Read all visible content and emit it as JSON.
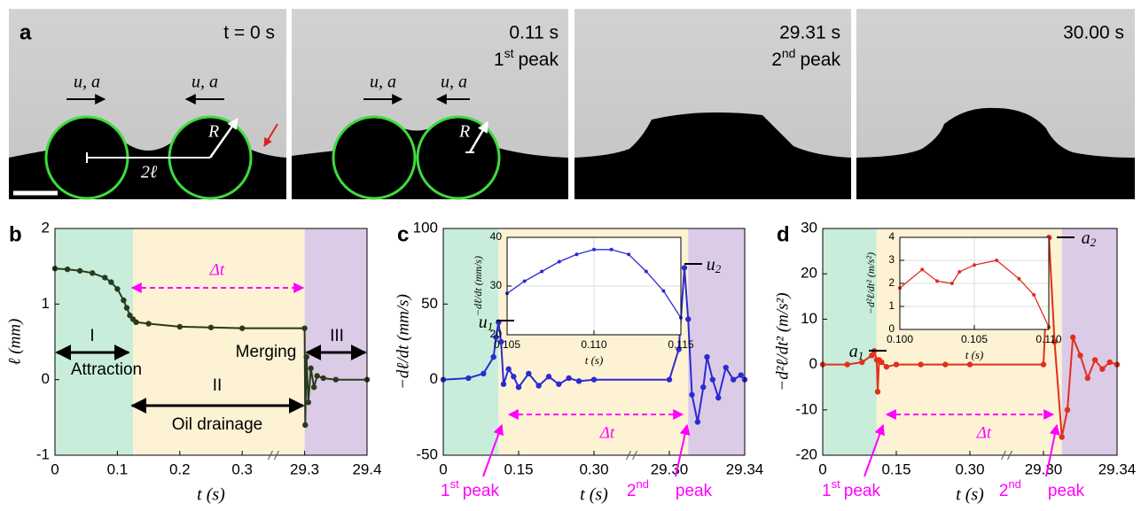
{
  "panel_a": {
    "label": "a",
    "frames": [
      {
        "time": "t = 0 s"
      },
      {
        "time": "0.11 s",
        "ordinal": "1",
        "suffix": "st",
        "word": "peak"
      },
      {
        "time": "29.31 s",
        "ordinal": "2",
        "suffix": "nd",
        "word": "peak"
      },
      {
        "time": "30.00 s"
      }
    ],
    "symbols": {
      "velocity": "u, a",
      "radius": "R",
      "distance": "2ℓ"
    }
  },
  "chart_data": [
    {
      "type": "line",
      "label": "b",
      "y_label": "ℓ (mm)",
      "x_label": "t (s)",
      "axis_break": true,
      "grid": false,
      "xlim": [
        0,
        29.4
      ],
      "xticks": [
        0,
        0.1,
        0.2,
        0.3,
        29.3,
        29.4
      ],
      "ylim": [
        -1,
        2
      ],
      "yticks": [
        -1,
        0,
        1,
        2
      ],
      "spans": [
        {
          "start": 0,
          "end": 0.125,
          "color": "#c8eedb"
        },
        {
          "start": 0.125,
          "end": 29.3,
          "color": "#fdf2d3"
        },
        {
          "start": 29.3,
          "end": 29.4,
          "color": "#dccbe7"
        }
      ],
      "series": [
        {
          "color": "#2a3a1c",
          "x": [
            0,
            0.02,
            0.04,
            0.06,
            0.08,
            0.09,
            0.1,
            0.11,
            0.115,
            0.12,
            0.125,
            0.13,
            0.15,
            0.2,
            0.25,
            0.3,
            29.3,
            29.301,
            29.303,
            29.306,
            29.31,
            29.315,
            29.32,
            29.33,
            29.35,
            29.4
          ],
          "values": [
            1.47,
            1.46,
            1.44,
            1.41,
            1.35,
            1.29,
            1.2,
            1.05,
            0.95,
            0.85,
            0.8,
            0.76,
            0.74,
            0.7,
            0.69,
            0.68,
            0.68,
            -0.6,
            0.3,
            -0.3,
            0.15,
            -0.1,
            0.05,
            0.02,
            0,
            0
          ]
        }
      ],
      "annotations": [
        {
          "text": "Δt"
        },
        {
          "text": "I"
        },
        {
          "text": "Attraction"
        },
        {
          "text": "II"
        },
        {
          "text": "Oil drainage"
        },
        {
          "text": "Merging"
        },
        {
          "text": "III"
        }
      ]
    },
    {
      "type": "line",
      "label": "c",
      "y_label": "−dℓ/dt (mm/s)",
      "x_label": "t (s)",
      "axis_break": true,
      "grid": false,
      "xlim": [
        0,
        29.34
      ],
      "xticks": [
        0,
        0.15,
        {
          "value": 0.3,
          "label": "0.30"
        },
        {
          "value": 29.3,
          "label": "29.30"
        },
        29.34
      ],
      "ylim": [
        -50,
        100
      ],
      "yticks": [
        -50,
        0,
        50,
        100
      ],
      "spans": [
        {
          "start": 0,
          "end": 0.11,
          "color": "#c8eedb"
        },
        {
          "start": 0.11,
          "end": 29.31,
          "color": "#fdf2d3"
        },
        {
          "start": 29.31,
          "end": 29.34,
          "color": "#dccbe7"
        }
      ],
      "series": [
        {
          "color": "#2b2bd0",
          "x": [
            0,
            0.05,
            0.08,
            0.1,
            0.105,
            0.11,
            0.115,
            0.12,
            0.13,
            0.14,
            0.15,
            0.17,
            0.19,
            0.21,
            0.23,
            0.25,
            0.27,
            0.3,
            29.3,
            29.305,
            29.308,
            29.31,
            29.312,
            29.315,
            29.318,
            29.32,
            29.323,
            29.326,
            29.33,
            29.334,
            29.338,
            29.34
          ],
          "values": [
            0,
            1,
            4,
            15,
            28,
            38,
            25,
            -3,
            7,
            2,
            -5,
            4,
            -4,
            2,
            -3,
            1,
            -1,
            0,
            0,
            20,
            74,
            40,
            -10,
            -28,
            -5,
            15,
            0,
            -12,
            8,
            0,
            3,
            0
          ]
        }
      ],
      "annotations": [
        {
          "text": "u",
          "sub": "1"
        },
        {
          "text": "u",
          "sub": "2"
        },
        {
          "text": "1",
          "sup": "st",
          "rest": "peak"
        },
        {
          "text": "2",
          "sup": "nd",
          "rest": "peak"
        },
        {
          "text": "Δt"
        }
      ]
    },
    {
      "type": "line",
      "y_label": "−dℓ/dt (mm/s)",
      "x_label": "t (s)",
      "grid": true,
      "xlim": [
        0.105,
        0.115
      ],
      "xticks": [
        0.105,
        {
          "value": 0.11,
          "label": "0.110"
        },
        0.115
      ],
      "ylim": [
        20,
        40
      ],
      "yticks": [
        20,
        30,
        40
      ],
      "series": [
        {
          "color": "#2b2bd0",
          "x": [
            0.105,
            0.106,
            0.107,
            0.108,
            0.109,
            0.11,
            0.111,
            0.112,
            0.113,
            0.114,
            0.115
          ],
          "values": [
            28.5,
            31,
            33,
            35,
            36.5,
            37.5,
            37.5,
            36.5,
            33,
            29,
            23.5
          ]
        }
      ]
    },
    {
      "type": "line",
      "label": "d",
      "y_label": "−d²ℓ/dt² (m/s²)",
      "x_label": "t (s)",
      "axis_break": true,
      "grid": false,
      "xlim": [
        0,
        29.34
      ],
      "xticks": [
        0,
        0.15,
        {
          "value": 0.3,
          "label": "0.30"
        },
        {
          "value": 29.3,
          "label": "29.30"
        },
        29.34
      ],
      "ylim": [
        -20,
        30
      ],
      "yticks": [
        -20,
        -10,
        0,
        10,
        20,
        30
      ],
      "spans": [
        {
          "start": 0,
          "end": 0.11,
          "color": "#c8eedb"
        },
        {
          "start": 0.11,
          "end": 29.31,
          "color": "#fdf2d3"
        },
        {
          "start": 29.31,
          "end": 29.34,
          "color": "#dccbe7"
        }
      ],
      "series": [
        {
          "color": "#e0301e",
          "x": [
            0,
            0.05,
            0.08,
            0.1,
            0.105,
            0.11,
            0.112,
            0.115,
            0.12,
            0.13,
            0.15,
            0.2,
            0.25,
            0.3,
            29.3,
            29.303,
            29.306,
            29.31,
            29.313,
            29.316,
            29.32,
            29.324,
            29.328,
            29.332,
            29.336,
            29.34
          ],
          "values": [
            0,
            0,
            0.5,
            2,
            3,
            1,
            -6,
            1,
            0.5,
            -0.5,
            0,
            0,
            0,
            0,
            0,
            28,
            5,
            -16,
            -10,
            6,
            2,
            -3,
            1,
            -1,
            0.5,
            0
          ]
        }
      ],
      "annotations": [
        {
          "text": "a",
          "sub": "1"
        },
        {
          "text": "a",
          "sub": "2"
        },
        {
          "text": "1",
          "sup": "st",
          "rest": "peak"
        },
        {
          "text": "2",
          "sup": "nd",
          "rest": "peak"
        },
        {
          "text": "Δt"
        }
      ]
    },
    {
      "type": "line",
      "y_label": "−d²ℓ/dt² (m/s²)",
      "x_label": "t (s)",
      "grid": true,
      "xlim": [
        0.1,
        0.11
      ],
      "xticks": [
        {
          "value": 0.1,
          "label": "0.100"
        },
        0.105,
        {
          "value": 0.11,
          "label": "0.110"
        }
      ],
      "ylim": [
        0,
        4
      ],
      "yticks": [
        0,
        1,
        2,
        3,
        4
      ],
      "series": [
        {
          "color": "#e0301e",
          "x": [
            0.1,
            0.1015,
            0.1025,
            0.1035,
            0.104,
            0.105,
            0.1065,
            0.108,
            0.109,
            0.11
          ],
          "values": [
            1.8,
            2.6,
            2.1,
            2.0,
            2.5,
            2.8,
            3.0,
            2.2,
            1.5,
            0.1
          ]
        }
      ]
    }
  ]
}
